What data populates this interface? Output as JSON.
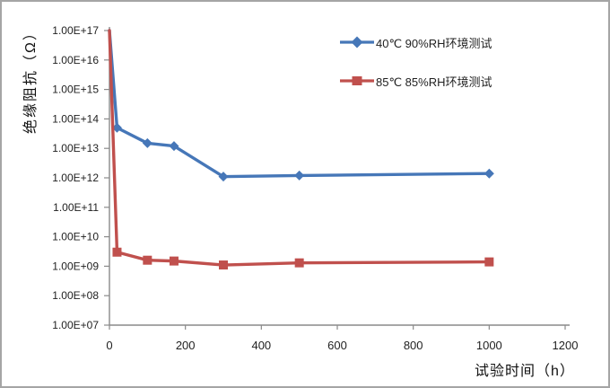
{
  "chart_data": {
    "type": "line",
    "title": "",
    "xlabel": "试验时间（h）",
    "ylabel": "绝缘阻抗（Ω）",
    "xlim": [
      0,
      1200
    ],
    "ylim": [
      10000000.0,
      1e+17
    ],
    "ylim_log10": [
      7,
      17
    ],
    "y_scale": "log",
    "grid": false,
    "legend_position": "inside-top-right",
    "x_ticks": [
      0,
      200,
      400,
      600,
      800,
      1000,
      1200
    ],
    "y_ticks": [
      {
        "label": "1.00E+17",
        "value": 1e+17
      },
      {
        "label": "1.00E+16",
        "value": 1e+16
      },
      {
        "label": "1.00E+15",
        "value": 1000000000000000.0
      },
      {
        "label": "1.00E+14",
        "value": 100000000000000.0
      },
      {
        "label": "1.00E+13",
        "value": 10000000000000.0
      },
      {
        "label": "1.00E+12",
        "value": 1000000000000.0
      },
      {
        "label": "1.00E+11",
        "value": 100000000000.0
      },
      {
        "label": "1.00E+10",
        "value": 10000000000.0
      },
      {
        "label": "1.00E+09",
        "value": 1000000000.0
      },
      {
        "label": "1.00E+08",
        "value": 100000000.0
      },
      {
        "label": "1.00E+07",
        "value": 10000000.0
      }
    ],
    "series": [
      {
        "name": "40℃ 90%RH环境测试",
        "color": "#4677b8",
        "marker": "diamond",
        "x": [
          0,
          20,
          100,
          170,
          300,
          500,
          1000
        ],
        "y": [
          1e+17,
          50000000000000.0,
          15000000000000.0,
          12000000000000.0,
          1100000000000.0,
          1200000000000.0,
          1400000000000.0
        ]
      },
      {
        "name": "85℃ 85%RH环境测试",
        "color": "#c0504d",
        "marker": "square",
        "x": [
          0,
          20,
          100,
          170,
          300,
          500,
          1000
        ],
        "y": [
          1e+17,
          3000000000.0,
          1600000000.0,
          1500000000.0,
          1100000000.0,
          1300000000.0,
          1400000000.0
        ]
      }
    ]
  },
  "colors": {
    "axis": "#8a8a8a",
    "tick_label": "#1f1f1f",
    "frame_border": "#a5a5a5",
    "background": "#ffffff"
  }
}
